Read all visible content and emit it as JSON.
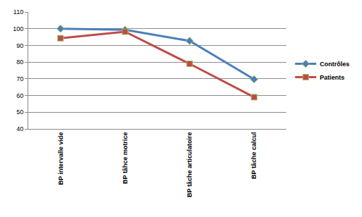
{
  "chart_data": {
    "type": "line",
    "categories": [
      "BP intervalle vide",
      "BP tâhce motrice",
      "BP tâche articulatoire",
      "BP tâche calcul"
    ],
    "series": [
      {
        "name": "Contrôles",
        "color": "#4a7ebb",
        "marker": "diamond",
        "line_style": "solid",
        "values": [
          100,
          99.3,
          92.7,
          69.7
        ]
      },
      {
        "name": "Patients",
        "color": "#be4b48",
        "marker": "square",
        "line_style": "solid",
        "values": [
          94.3,
          98.2,
          79,
          59
        ]
      }
    ],
    "ylim": [
      40,
      110
    ],
    "yticks": [
      40,
      50,
      60,
      70,
      80,
      90,
      100,
      110
    ],
    "grid": true,
    "legend": "right"
  }
}
